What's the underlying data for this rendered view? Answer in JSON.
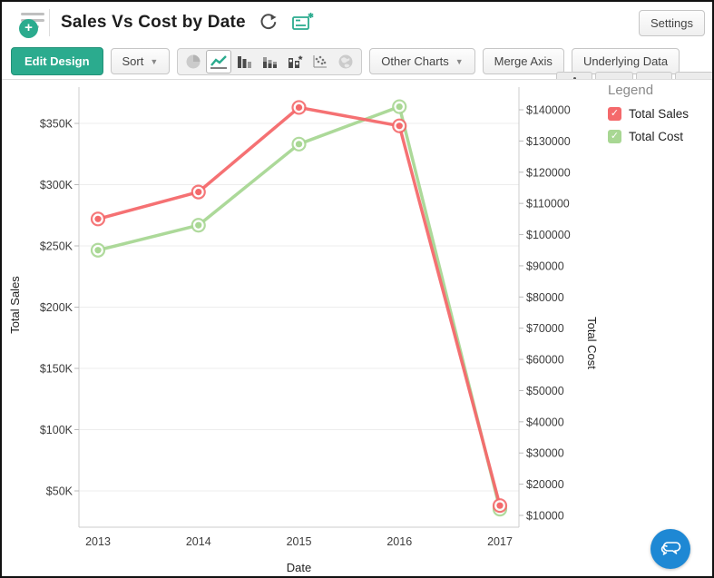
{
  "header": {
    "title": "Sales Vs Cost by Date",
    "settings_label": "Settings"
  },
  "toolbar": {
    "edit_design_label": "Edit Design",
    "sort_label": "Sort",
    "other_charts_label": "Other Charts",
    "merge_axis_label": "Merge Axis",
    "underlying_data_label": "Underlying Data",
    "chart_type_icons": [
      "pie",
      "line",
      "bar",
      "stacked-bar",
      "combination",
      "scatter",
      "map"
    ],
    "selected_chart_type": "line"
  },
  "legend": {
    "title": "Legend"
  },
  "colors": {
    "accent": "#2bab8e",
    "chat_button": "#1e88d4",
    "series_sales": "#f4696b",
    "series_cost": "#a8d793"
  },
  "chart_data": {
    "type": "line",
    "title": "Sales Vs Cost by Date",
    "categories": [
      "2013",
      "2014",
      "2015",
      "2016",
      "2017"
    ],
    "series": [
      {
        "name": "Total Sales",
        "axis": "left",
        "color": "#f4696b",
        "values": [
          272000,
          294000,
          363000,
          348000,
          38000
        ]
      },
      {
        "name": "Total Cost",
        "axis": "right",
        "color": "#a8d793",
        "values": [
          95000,
          103000,
          129000,
          141000,
          12000
        ]
      }
    ],
    "xlabel": "Date",
    "left_axis": {
      "label": "Total Sales",
      "tick_labels": [
        "$350K",
        "$300K",
        "$250K",
        "$200K",
        "$150K",
        "$100K",
        "$50K"
      ],
      "tick_values": [
        350000,
        300000,
        250000,
        200000,
        150000,
        100000,
        50000
      ]
    },
    "right_axis": {
      "label": "Total Cost",
      "tick_labels": [
        "$140000",
        "$130000",
        "$120000",
        "$110000",
        "$100000",
        "$90000",
        "$80000",
        "$70000",
        "$60000",
        "$50000",
        "$40000",
        "$30000",
        "$20000",
        "$10000"
      ],
      "tick_values": [
        140000,
        130000,
        120000,
        110000,
        100000,
        90000,
        80000,
        70000,
        60000,
        50000,
        40000,
        30000,
        20000,
        10000
      ]
    },
    "grid": true,
    "legend_position": "right"
  }
}
